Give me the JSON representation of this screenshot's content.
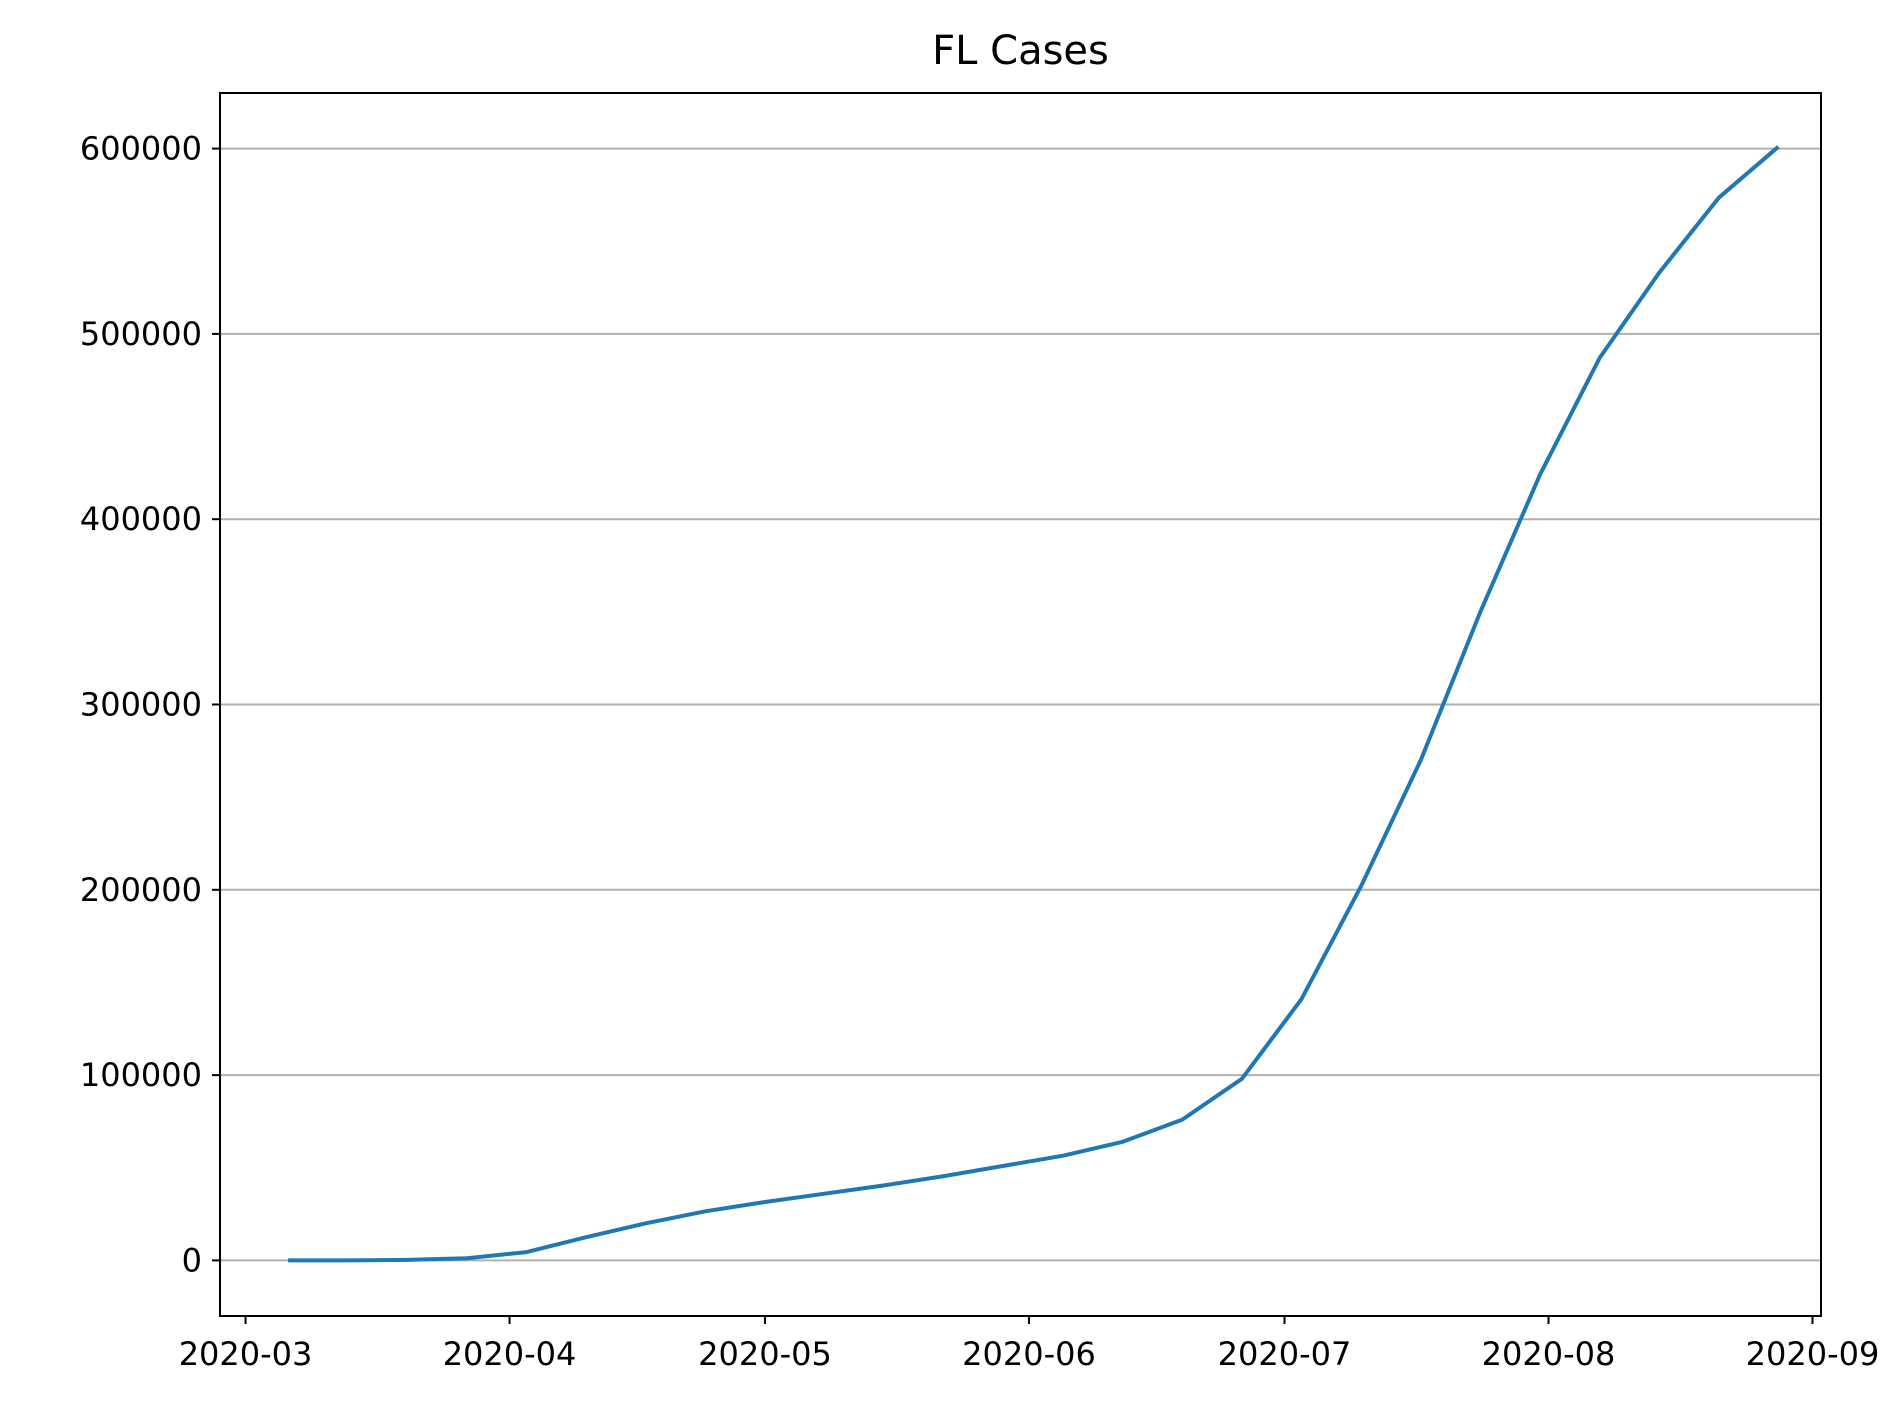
{
  "chart_data": {
    "type": "line",
    "title": "FL Cases",
    "xlabel": "",
    "ylabel": "",
    "x_tick_labels": [
      "2020-03",
      "2020-04",
      "2020-05",
      "2020-06",
      "2020-07",
      "2020-08",
      "2020-09"
    ],
    "x_ticks": [
      "2020-03-01",
      "2020-04-01",
      "2020-05-01",
      "2020-06-01",
      "2020-07-01",
      "2020-08-01",
      "2020-09-01"
    ],
    "y_ticks": [
      0,
      100000,
      200000,
      300000,
      400000,
      500000,
      600000
    ],
    "y_tick_labels": [
      "0",
      "100000",
      "200000",
      "300000",
      "400000",
      "500000",
      "600000"
    ],
    "xlim": [
      "2020-02-27",
      "2020-09-02"
    ],
    "ylim": [
      -30000,
      630000
    ],
    "grid": "horizontal",
    "legend": "none",
    "series": [
      {
        "color": "#1f77b4",
        "x": [
          "2020-03-06",
          "2020-03-13",
          "2020-03-20",
          "2020-03-27",
          "2020-04-03",
          "2020-04-10",
          "2020-04-17",
          "2020-04-24",
          "2020-05-01",
          "2020-05-08",
          "2020-05-15",
          "2020-05-22",
          "2020-05-29",
          "2020-06-05",
          "2020-06-12",
          "2020-06-19",
          "2020-06-26",
          "2020-07-03",
          "2020-07-10",
          "2020-07-17",
          "2020-07-24",
          "2020-07-31",
          "2020-08-07",
          "2020-08-14",
          "2020-08-21",
          "2020-08-28"
        ],
        "y": [
          0,
          0,
          300,
          1200,
          4500,
          12500,
          20000,
          26500,
          31500,
          36000,
          40500,
          45500,
          51000,
          56500,
          64000,
          76000,
          98000,
          141000,
          202000,
          270000,
          350000,
          424000,
          487000,
          533000,
          573500,
          601000
        ]
      }
    ]
  }
}
